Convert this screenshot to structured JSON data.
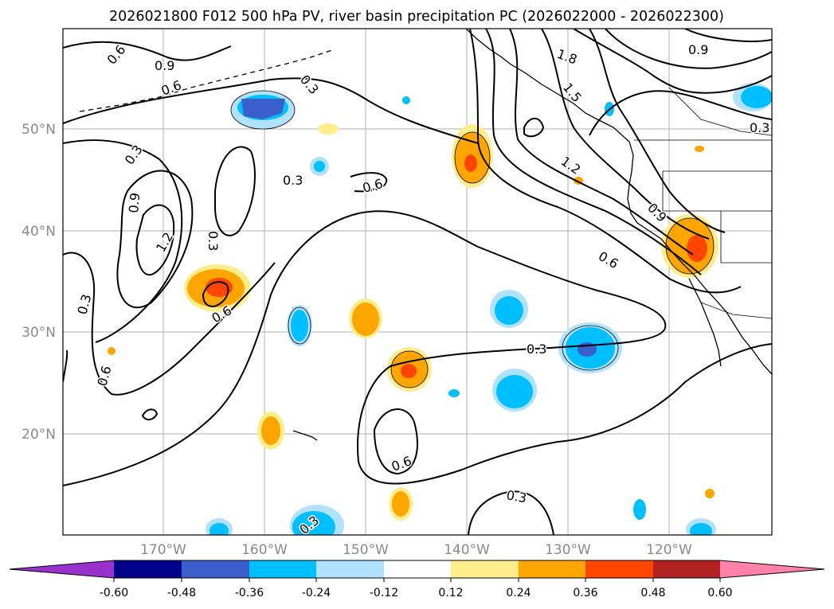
{
  "title": "2026021800 F012 500 hPa PV, river basin precipitation PC (2026022000 - 2026022300)",
  "map": {
    "lat_labels": [
      "50°N",
      "40°N",
      "30°N",
      "20°N"
    ],
    "lon_labels": [
      "170°W",
      "160°W",
      "150°W",
      "140°W",
      "130°W",
      "120°W"
    ],
    "contour_labels": [
      "0.6",
      "0.9",
      "0.6",
      "0.3",
      "0.3",
      "0.9",
      "1.2",
      "0.3",
      "0.3",
      "0.6",
      "0.6",
      "0.3",
      "0.6",
      "1.8",
      "0.9",
      "1.5",
      "1.2",
      "0.3",
      "0.9",
      "0.6",
      "0.3",
      "0.6",
      "0.3",
      "0.3"
    ]
  },
  "colorbar": {
    "colors": [
      "#9932cc",
      "#00008b",
      "#3a5fcd",
      "#00bfff",
      "#b0e2ff",
      "#ffffff",
      "#ffec8b",
      "#ffa500",
      "#ff4500",
      "#b22222",
      "#ff82ab"
    ],
    "ticks": [
      "-0.60",
      "-0.48",
      "-0.36",
      "-0.24",
      "-0.12",
      "0.12",
      "0.24",
      "0.36",
      "0.48",
      "0.60"
    ]
  }
}
